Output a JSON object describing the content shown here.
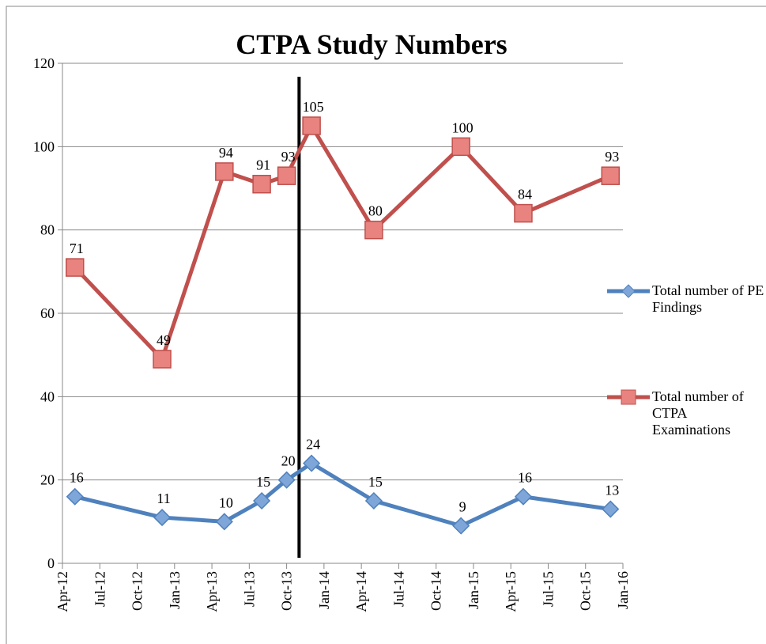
{
  "chart_data": {
    "type": "line",
    "title": "CTPA Study Numbers",
    "x": [
      "2012-05",
      "2012-12",
      "2013-05",
      "2013-08",
      "2013-10",
      "2013-12",
      "2014-05",
      "2014-12",
      "2015-05",
      "2015-12"
    ],
    "series": [
      {
        "name": "Total number of PE Findings",
        "color": "#4f81bd",
        "marker": "diamond",
        "values": [
          16,
          11,
          10,
          15,
          20,
          24,
          15,
          9,
          16,
          13
        ]
      },
      {
        "name": "Total number of CTPA Examinations",
        "color": "#c0504d",
        "marker": "square",
        "values": [
          71,
          49,
          94,
          91,
          93,
          105,
          80,
          100,
          84,
          93
        ]
      }
    ],
    "xlim": [
      "2012-04",
      "2016-01"
    ],
    "xticks": [
      {
        "value": "2012-04",
        "label": "Apr-12"
      },
      {
        "value": "2012-07",
        "label": "Jul-12"
      },
      {
        "value": "2012-10",
        "label": "Oct-12"
      },
      {
        "value": "2013-01",
        "label": "Jan-13"
      },
      {
        "value": "2013-04",
        "label": "Apr-13"
      },
      {
        "value": "2013-07",
        "label": "Jul-13"
      },
      {
        "value": "2013-10",
        "label": "Oct-13"
      },
      {
        "value": "2014-01",
        "label": "Jan-14"
      },
      {
        "value": "2014-04",
        "label": "Apr-14"
      },
      {
        "value": "2014-07",
        "label": "Jul-14"
      },
      {
        "value": "2014-10",
        "label": "Oct-14"
      },
      {
        "value": "2015-01",
        "label": "Jan-15"
      },
      {
        "value": "2015-04",
        "label": "Apr-15"
      },
      {
        "value": "2015-07",
        "label": "Jul-15"
      },
      {
        "value": "2015-10",
        "label": "Oct-15"
      },
      {
        "value": "2016-01",
        "label": "Jan-16"
      }
    ],
    "ylim": [
      0,
      120
    ],
    "yticks": [
      0,
      20,
      40,
      60,
      80,
      100,
      120
    ],
    "grid": true,
    "legend": "right",
    "reference_line": {
      "x": "2013-11",
      "color": "#000000"
    }
  }
}
